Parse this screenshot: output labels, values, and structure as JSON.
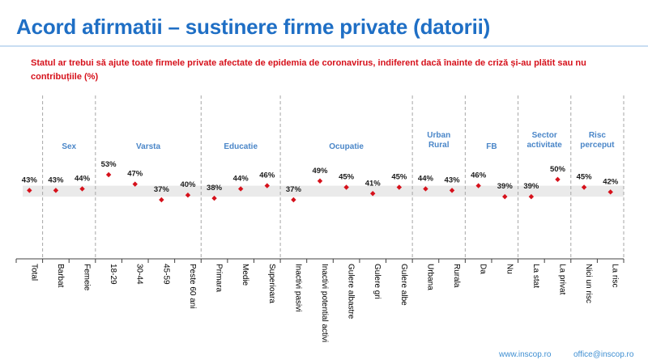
{
  "title": "Acord afirmatii – sustinere firme private (datorii)",
  "subtitle": "Statul ar trebui să ajute toate firmele private afectate de epidemia de coronavirus, indiferent dacă înainte de criză și-au plătit sau nu contribuțiile (%)",
  "footer": {
    "website": "www.inscop.ro",
    "email": "office@inscop.ro"
  },
  "colors": {
    "title": "#1f6fc5",
    "subtitle": "#d6111b",
    "group_label": "#4a86c8",
    "marker": "#d6111b",
    "band": "#d9d9d9",
    "divider": "#a6a6a6"
  },
  "chart_data": {
    "type": "scatter",
    "title": "Statul ar trebui să ajute toate firmele private afectate de epidemia de coronavirus, indiferent dacă înainte de criză și-au plătit sau nu contribuțiile (%)",
    "ylim": [
      0,
      100
    ],
    "band": [
      39,
      46
    ],
    "categories": [
      "Total",
      "Barbat",
      "Femeie",
      "18-29",
      "30-44",
      "45-59",
      "Peste 60 ani",
      "Primara",
      "Medie",
      "Superioara",
      "Inactivi pasivi",
      "Inactivi potential activi",
      "Gulere albastre",
      "Gulere gri",
      "Gulere albe",
      "Urbana",
      "Rurala",
      "Da",
      "Nu",
      "La stat",
      "La privat",
      "Nici un risc",
      "La risc"
    ],
    "values": [
      43,
      43,
      44,
      53,
      47,
      37,
      40,
      38,
      44,
      46,
      37,
      49,
      45,
      41,
      45,
      44,
      43,
      46,
      39,
      39,
      50,
      45,
      42
    ],
    "groups": [
      {
        "label": [
          "Sex"
        ],
        "start": 1,
        "end": 2
      },
      {
        "label": [
          "Varsta"
        ],
        "start": 3,
        "end": 6
      },
      {
        "label": [
          "Educatie"
        ],
        "start": 7,
        "end": 9
      },
      {
        "label": [
          "Ocupatie"
        ],
        "start": 10,
        "end": 14
      },
      {
        "label": [
          "Urban",
          "Rural"
        ],
        "start": 15,
        "end": 16
      },
      {
        "label": [
          "FB"
        ],
        "start": 17,
        "end": 18
      },
      {
        "label": [
          "Sector",
          "activitate"
        ],
        "start": 19,
        "end": 20
      },
      {
        "label": [
          "Risc",
          "perceput"
        ],
        "start": 21,
        "end": 22
      }
    ]
  }
}
